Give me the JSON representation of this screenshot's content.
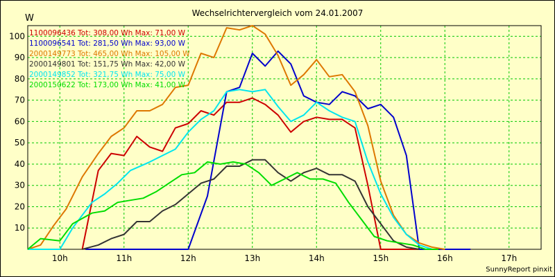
{
  "chart_data": {
    "type": "line",
    "title": "Wechselrichtervergleich vom 24.01.2007",
    "ylabel": "W",
    "xlabel": "",
    "ylim": [
      0,
      105
    ],
    "xlim": [
      9.5,
      17.5
    ],
    "grid": true,
    "footer": "SunnyReport pinxit",
    "y_ticks": [
      10,
      20,
      30,
      40,
      50,
      60,
      70,
      80,
      90,
      100
    ],
    "x_ticks": [
      {
        "value": 10,
        "label": "10h"
      },
      {
        "value": 11,
        "label": "11h"
      },
      {
        "value": 12,
        "label": "12h"
      },
      {
        "value": 13,
        "label": "13h"
      },
      {
        "value": 14,
        "label": "14h"
      },
      {
        "value": 15,
        "label": "15h"
      },
      {
        "value": 16,
        "label": "16h"
      },
      {
        "value": 17,
        "label": "17h"
      }
    ],
    "series": [
      {
        "name": "1100096436 Tot: 308,00 Wh Max: 71,00 W",
        "color": "#cc0000",
        "x": [
          10.35,
          10.6,
          10.8,
          11.0,
          11.2,
          11.4,
          11.6,
          11.8,
          12.0,
          12.2,
          12.4,
          12.6,
          12.8,
          13.0,
          13.2,
          13.4,
          13.6,
          13.8,
          14.0,
          14.2,
          14.4,
          14.6,
          14.8,
          15.0,
          15.2,
          15.4,
          15.6,
          15.8,
          16.1,
          16.4
        ],
        "y": [
          0,
          37,
          45,
          44,
          53,
          48,
          46,
          57,
          59,
          65,
          63,
          69,
          69,
          71,
          68,
          63,
          55,
          60,
          62,
          61,
          61,
          57,
          30,
          0,
          0,
          0,
          0,
          0,
          0,
          0
        ]
      },
      {
        "name": "1100096541 Tot: 281,50 Wh Max: 93,00 W",
        "color": "#0000cc",
        "x": [
          10.4,
          11.0,
          11.6,
          12.0,
          12.3,
          12.6,
          12.8,
          13.0,
          13.2,
          13.4,
          13.6,
          13.8,
          14.0,
          14.2,
          14.4,
          14.6,
          14.8,
          15.0,
          15.2,
          15.4,
          15.6,
          15.8,
          16.0,
          16.2,
          16.4
        ],
        "y": [
          0,
          0,
          0,
          0,
          25,
          74,
          76,
          92,
          86,
          93,
          87,
          72,
          69,
          68,
          74,
          72,
          66,
          68,
          62,
          44,
          0,
          0,
          0,
          0,
          0
        ]
      },
      {
        "name": "2000149773 Tot: 465,00 Wh Max: 105,00 W",
        "color": "#dd7700",
        "x": [
          9.5,
          9.7,
          9.9,
          10.1,
          10.35,
          10.6,
          10.8,
          11.0,
          11.2,
          11.4,
          11.6,
          11.8,
          12.0,
          12.2,
          12.4,
          12.6,
          12.8,
          13.0,
          13.2,
          13.4,
          13.6,
          13.8,
          14.0,
          14.2,
          14.4,
          14.6,
          14.8,
          15.0,
          15.2,
          15.4,
          15.6,
          15.8,
          16.0
        ],
        "y": [
          0,
          2,
          11,
          19,
          34,
          45,
          53,
          57,
          65,
          65,
          68,
          76,
          77,
          92,
          90,
          104,
          103,
          105,
          101,
          91,
          77,
          82,
          89,
          81,
          82,
          74,
          58,
          32,
          16,
          7,
          3,
          1,
          0
        ]
      },
      {
        "name": "2000149801 Tot: 151,75 Wh Max: 42,00 W",
        "color": "#333333",
        "x": [
          10.35,
          10.6,
          10.8,
          11.0,
          11.2,
          11.4,
          11.6,
          11.8,
          12.0,
          12.2,
          12.4,
          12.6,
          12.8,
          13.0,
          13.2,
          13.4,
          13.6,
          13.8,
          14.0,
          14.2,
          14.4,
          14.6,
          14.8,
          15.0,
          15.2,
          15.4,
          15.6
        ],
        "y": [
          0,
          2,
          5,
          7,
          13,
          13,
          18,
          21,
          26,
          31,
          33,
          39,
          39,
          42,
          42,
          36,
          32,
          36,
          38,
          35,
          35,
          32,
          20,
          12,
          4,
          1,
          0
        ]
      },
      {
        "name": "2000149852 Tot: 321,75 Wh Max: 75,00 W",
        "color": "#00e5ee",
        "x": [
          9.5,
          9.7,
          10.0,
          10.2,
          10.5,
          10.7,
          10.9,
          11.1,
          11.4,
          11.6,
          11.8,
          12.0,
          12.2,
          12.4,
          12.6,
          12.8,
          13.0,
          13.2,
          13.4,
          13.6,
          13.8,
          14.0,
          14.2,
          14.4,
          14.6,
          14.8,
          15.0,
          15.2,
          15.4,
          15.6,
          15.8
        ],
        "y": [
          0,
          0,
          0,
          10,
          22,
          26,
          31,
          37,
          41,
          44,
          47,
          55,
          61,
          65,
          74,
          75,
          74,
          75,
          67,
          60,
          63,
          69,
          65,
          62,
          60,
          41,
          26,
          15,
          7,
          2,
          0
        ]
      },
      {
        "name": "2000150622 Tot: 173,00 Wh Max: 41,00 W",
        "color": "#00dd00",
        "x": [
          9.5,
          9.7,
          10.0,
          10.2,
          10.5,
          10.7,
          10.9,
          11.1,
          11.3,
          11.5,
          11.7,
          11.9,
          12.1,
          12.3,
          12.5,
          12.7,
          12.9,
          13.1,
          13.3,
          13.5,
          13.7,
          13.9,
          14.1,
          14.3,
          14.5,
          14.7,
          14.9,
          15.1,
          15.3,
          15.5,
          15.7,
          15.9
        ],
        "y": [
          0,
          5,
          4,
          12,
          17,
          18,
          22,
          23,
          24,
          27,
          31,
          35,
          36,
          41,
          40,
          41,
          40,
          36,
          30,
          33,
          36,
          33,
          33,
          31,
          22,
          14,
          6,
          4,
          3,
          2,
          0,
          0
        ]
      }
    ]
  }
}
